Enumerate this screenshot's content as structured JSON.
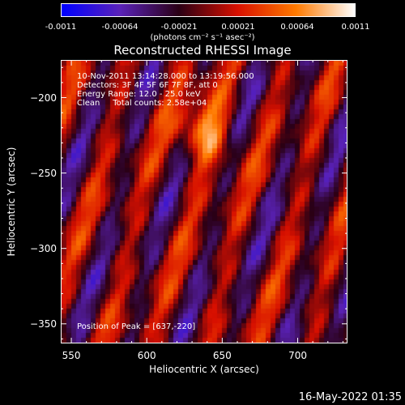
{
  "colorbar": {
    "ticks": [
      "-0.0011",
      "-0.00064",
      "-0.00021",
      "0.00021",
      "0.00064",
      "0.0011"
    ],
    "units": "(photons cm⁻² s⁻¹ asec⁻²)",
    "colors": [
      "#0000ff",
      "#5a22b8",
      "#2a0015",
      "#d81000",
      "#ff7a00",
      "#ffffff"
    ]
  },
  "chart_data": {
    "type": "heatmap",
    "title": "Reconstructed RHESSI Image",
    "xlabel": "Heliocentric X (arcsec)",
    "ylabel": "Heliocentric Y (arcsec)",
    "xlim": [
      543,
      733
    ],
    "ylim": [
      -363,
      -175
    ],
    "xticks": [
      550,
      600,
      650,
      700
    ],
    "yticks": [
      -200,
      -250,
      -300,
      -350
    ],
    "zlim": [
      -0.0011,
      0.0011
    ],
    "peak": [
      637,
      -220
    ],
    "annotations": {
      "time": "10-Nov-2011 13:14:28.000 to 13:19:56.000",
      "detectors": "Detectors: 3F 4F 5F 6F 7F 8F, att 0",
      "energy": "Energy Range: 12.0 - 25.0 keV",
      "clean": "Clean     Total counts: 2.58e+04",
      "peak_label": "Position of Peak = [637,-220]"
    }
  },
  "footer": {
    "date": "16-May-2022 01:35"
  }
}
